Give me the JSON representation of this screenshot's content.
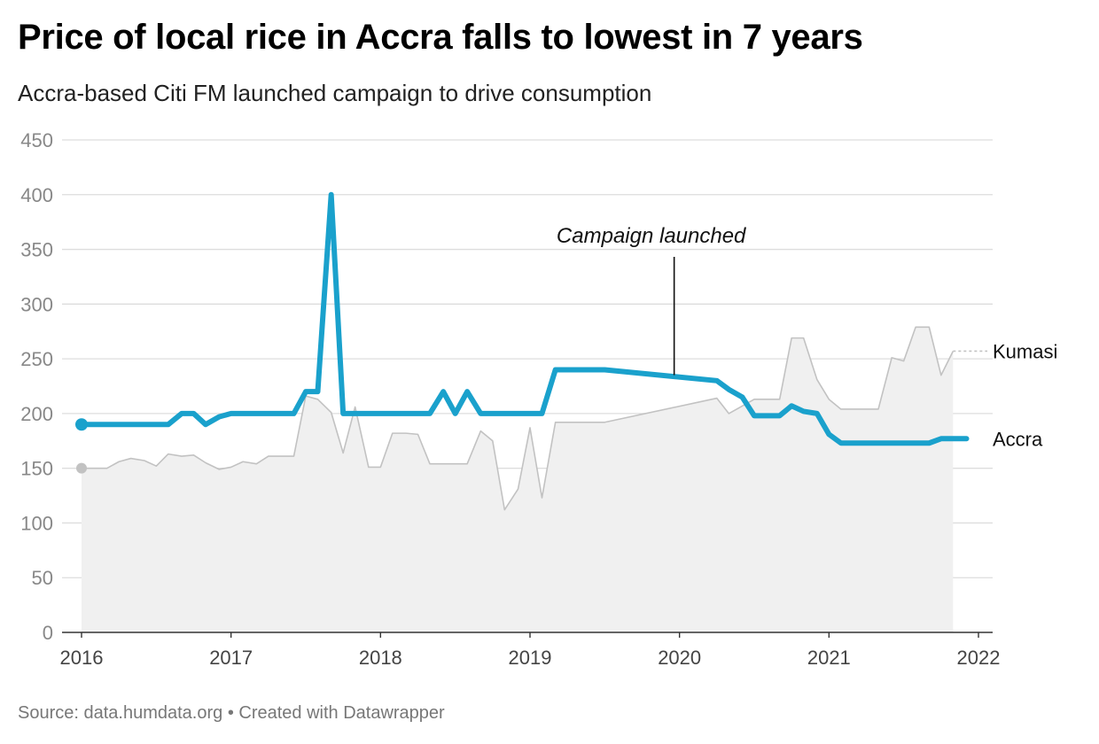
{
  "title": "Price of local rice in Accra falls to lowest in 7 years",
  "subtitle": "Accra-based Citi FM launched campaign to drive consumption",
  "source": "Source: data.humdata.org • Created with Datawrapper",
  "colors": {
    "accra": "#1aa1cc",
    "kumasi_line": "#c2c2c2",
    "kumasi_fill": "#f0f0f0",
    "grid": "#dddddd",
    "axis": "#333333"
  },
  "chart_data": {
    "type": "line",
    "ylim": [
      0,
      450
    ],
    "xlim": [
      2016,
      2022
    ],
    "y_ticks": [
      0,
      50,
      100,
      150,
      200,
      250,
      300,
      350,
      400,
      450
    ],
    "y_tick_labels": [
      "0",
      "50",
      "100",
      "150",
      "200",
      "250",
      "300",
      "350",
      "400",
      "450"
    ],
    "x_ticks": [
      2016,
      2017,
      2018,
      2019,
      2020,
      2021,
      2022
    ],
    "x_tick_labels": [
      "2016",
      "2017",
      "2018",
      "2019",
      "2020",
      "2021",
      "2022"
    ],
    "grid": true,
    "annotations": [
      {
        "text": "Campaign launched",
        "x": 2020.0,
        "y": 240
      }
    ],
    "series": [
      {
        "name": "Kumasi",
        "style": "area",
        "points": [
          [
            2016.0,
            150
          ],
          [
            2016.17,
            150
          ],
          [
            2016.25,
            156
          ],
          [
            2016.33,
            159
          ],
          [
            2016.42,
            157
          ],
          [
            2016.5,
            152
          ],
          [
            2016.58,
            163
          ],
          [
            2016.67,
            161
          ],
          [
            2016.75,
            162
          ],
          [
            2016.83,
            155
          ],
          [
            2016.92,
            149
          ],
          [
            2017.0,
            151
          ],
          [
            2017.08,
            156
          ],
          [
            2017.17,
            154
          ],
          [
            2017.25,
            161
          ],
          [
            2017.42,
            161
          ],
          [
            2017.5,
            216
          ],
          [
            2017.58,
            213
          ],
          [
            2017.67,
            201
          ],
          [
            2017.75,
            164
          ],
          [
            2017.83,
            206
          ],
          [
            2017.92,
            151
          ],
          [
            2018.0,
            151
          ],
          [
            2018.08,
            182
          ],
          [
            2018.17,
            182
          ],
          [
            2018.25,
            181
          ],
          [
            2018.33,
            154
          ],
          [
            2018.58,
            154
          ],
          [
            2018.67,
            184
          ],
          [
            2018.75,
            175
          ],
          [
            2018.83,
            112
          ],
          [
            2018.92,
            131
          ],
          [
            2019.0,
            187
          ],
          [
            2019.08,
            123
          ],
          [
            2019.17,
            192
          ],
          [
            2019.5,
            192
          ],
          [
            2020.25,
            214
          ],
          [
            2020.33,
            200
          ],
          [
            2020.5,
            213
          ],
          [
            2020.67,
            213
          ],
          [
            2020.75,
            269
          ],
          [
            2020.83,
            269
          ],
          [
            2020.92,
            231
          ],
          [
            2021.0,
            213
          ],
          [
            2021.08,
            204
          ],
          [
            2021.33,
            204
          ],
          [
            2021.42,
            251
          ],
          [
            2021.5,
            248
          ],
          [
            2021.58,
            279
          ],
          [
            2021.67,
            279
          ],
          [
            2021.75,
            235
          ],
          [
            2021.83,
            257
          ]
        ],
        "projection": [
          [
            2021.83,
            257
          ],
          [
            2022.0,
            257
          ]
        ]
      },
      {
        "name": "Accra",
        "style": "line",
        "points": [
          [
            2016.0,
            190
          ],
          [
            2016.58,
            190
          ],
          [
            2016.67,
            200
          ],
          [
            2016.75,
            200
          ],
          [
            2016.83,
            190
          ],
          [
            2016.92,
            197
          ],
          [
            2017.0,
            200
          ],
          [
            2017.42,
            200
          ],
          [
            2017.5,
            220
          ],
          [
            2017.58,
            220
          ],
          [
            2017.67,
            400
          ],
          [
            2017.75,
            200
          ],
          [
            2018.33,
            200
          ],
          [
            2018.42,
            220
          ],
          [
            2018.5,
            200
          ],
          [
            2018.58,
            220
          ],
          [
            2018.67,
            200
          ],
          [
            2019.08,
            200
          ],
          [
            2019.17,
            240
          ],
          [
            2019.5,
            240
          ],
          [
            2020.25,
            230
          ],
          [
            2020.33,
            222
          ],
          [
            2020.42,
            215
          ],
          [
            2020.5,
            198
          ],
          [
            2020.67,
            198
          ],
          [
            2020.75,
            207
          ],
          [
            2020.83,
            202
          ],
          [
            2020.92,
            200
          ],
          [
            2021.0,
            181
          ],
          [
            2021.08,
            173
          ],
          [
            2021.67,
            173
          ],
          [
            2021.75,
            177
          ],
          [
            2021.92,
            177
          ]
        ]
      }
    ]
  }
}
